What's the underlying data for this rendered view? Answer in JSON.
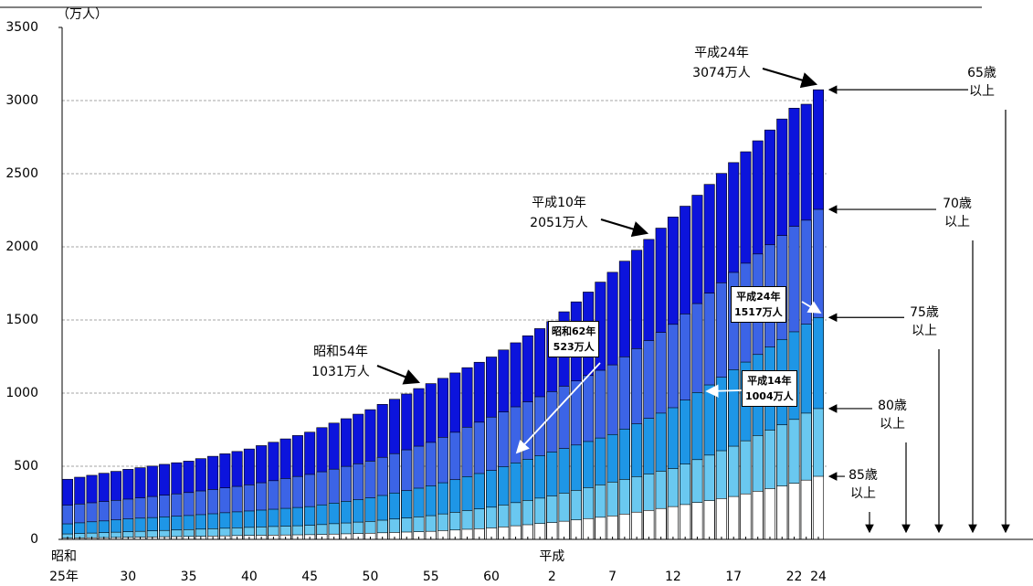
{
  "chart_data": {
    "type": "bar",
    "y_label": "（万人）",
    "categories": [
      "25年",
      null,
      null,
      null,
      null,
      "30",
      null,
      null,
      null,
      null,
      "35",
      null,
      null,
      null,
      null,
      "40",
      null,
      null,
      null,
      null,
      "45",
      null,
      null,
      null,
      null,
      "50",
      null,
      null,
      null,
      null,
      "55",
      null,
      null,
      null,
      null,
      "60",
      null,
      null,
      null,
      null,
      "2",
      null,
      null,
      null,
      null,
      "7",
      null,
      null,
      null,
      null,
      "12",
      null,
      null,
      null,
      null,
      "17",
      null,
      null,
      null,
      null,
      "22",
      null,
      "24"
    ],
    "eras": [
      "昭和",
      "平成"
    ],
    "series": [
      {
        "name": "65歳以上",
        "color": "#0c14dc",
        "values": [
          411,
          425,
          438,
          452,
          465,
          479,
          490,
          501,
          513,
          524,
          535,
          552,
          568,
          585,
          601,
          618,
          641,
          664,
          687,
          710,
          733,
          764,
          795,
          825,
          856,
          887,
          923,
          958,
          994,
          1031,
          1065,
          1101,
          1138,
          1174,
          1211,
          1247,
          1295,
          1344,
          1392,
          1441,
          1489,
          1556,
          1624,
          1691,
          1759,
          1826,
          1902,
          1977,
          2051,
          2128,
          2204,
          2278,
          2353,
          2427,
          2502,
          2576,
          2650,
          2725,
          2799,
          2874,
          2948,
          2975,
          3074
        ]
      },
      {
        "name": "70歳以上",
        "color": "#3c64e6",
        "values": [
          234,
          242,
          250,
          259,
          267,
          275,
          284,
          293,
          302,
          311,
          320,
          331,
          341,
          352,
          362,
          373,
          387,
          401,
          416,
          430,
          444,
          462,
          480,
          499,
          517,
          535,
          561,
          586,
          612,
          637,
          663,
          698,
          732,
          767,
          801,
          836,
          871,
          906,
          940,
          975,
          1010,
          1047,
          1083,
          1120,
          1156,
          1193,
          1248,
          1304,
          1359,
          1415,
          1470,
          1541,
          1612,
          1683,
          1754,
          1825,
          1888,
          1951,
          2014,
          2077,
          2140,
          2182,
          2256
        ]
      },
      {
        "name": "75歳以上",
        "color": "#1e96e6",
        "values": [
          106,
          113,
          120,
          126,
          133,
          140,
          145,
          149,
          154,
          158,
          163,
          169,
          175,
          182,
          188,
          194,
          200,
          206,
          212,
          218,
          224,
          236,
          248,
          260,
          272,
          284,
          300,
          317,
          333,
          350,
          366,
          387,
          408,
          429,
          450,
          471,
          497,
          523,
          548,
          572,
          597,
          621,
          645,
          669,
          693,
          717,
          754,
          790,
          827,
          863,
          900,
          952,
          1004,
          1056,
          1108,
          1160,
          1212,
          1264,
          1315,
          1367,
          1419,
          1471,
          1517
        ]
      },
      {
        "name": "80歳以上",
        "color": "#6ac8f0",
        "values": [
          37,
          40,
          43,
          46,
          49,
          52,
          55,
          58,
          61,
          64,
          67,
          70,
          73,
          76,
          79,
          82,
          85,
          88,
          90,
          93,
          96,
          101,
          107,
          112,
          118,
          123,
          131,
          139,
          146,
          154,
          162,
          174,
          185,
          197,
          208,
          220,
          235,
          251,
          266,
          282,
          297,
          316,
          335,
          354,
          373,
          392,
          410,
          429,
          447,
          466,
          484,
          515,
          545,
          576,
          606,
          637,
          674,
          710,
          747,
          783,
          820,
          863,
          894
        ]
      },
      {
        "name": "85歳以上",
        "color": "#ffffff",
        "values": [
          9,
          10,
          11,
          12,
          13,
          14,
          15,
          16,
          18,
          19,
          20,
          21,
          23,
          24,
          26,
          27,
          28,
          29,
          30,
          31,
          32,
          34,
          36,
          38,
          40,
          42,
          45,
          47,
          50,
          52,
          55,
          60,
          64,
          69,
          73,
          78,
          85,
          93,
          100,
          108,
          115,
          124,
          133,
          142,
          151,
          160,
          173,
          186,
          198,
          211,
          224,
          238,
          252,
          265,
          279,
          293,
          311,
          329,
          347,
          365,
          383,
          405,
          431
        ]
      }
    ],
    "ylim": [
      0,
      3500
    ],
    "yticks": [
      0,
      500,
      1000,
      1500,
      2000,
      2500,
      3000,
      3500
    ],
    "grid": true,
    "annotations": [
      {
        "label": "平成24年",
        "value_label": "3074万人"
      },
      {
        "label": "平成10年",
        "value_label": "2051万人"
      },
      {
        "label": "昭和54年",
        "value_label": "1031万人"
      },
      {
        "label": "昭和62年",
        "value_label": "523万人"
      },
      {
        "label": "平成14年",
        "value_label": "1004万人"
      },
      {
        "label": "平成24年",
        "value_label": "1517万人"
      }
    ]
  }
}
